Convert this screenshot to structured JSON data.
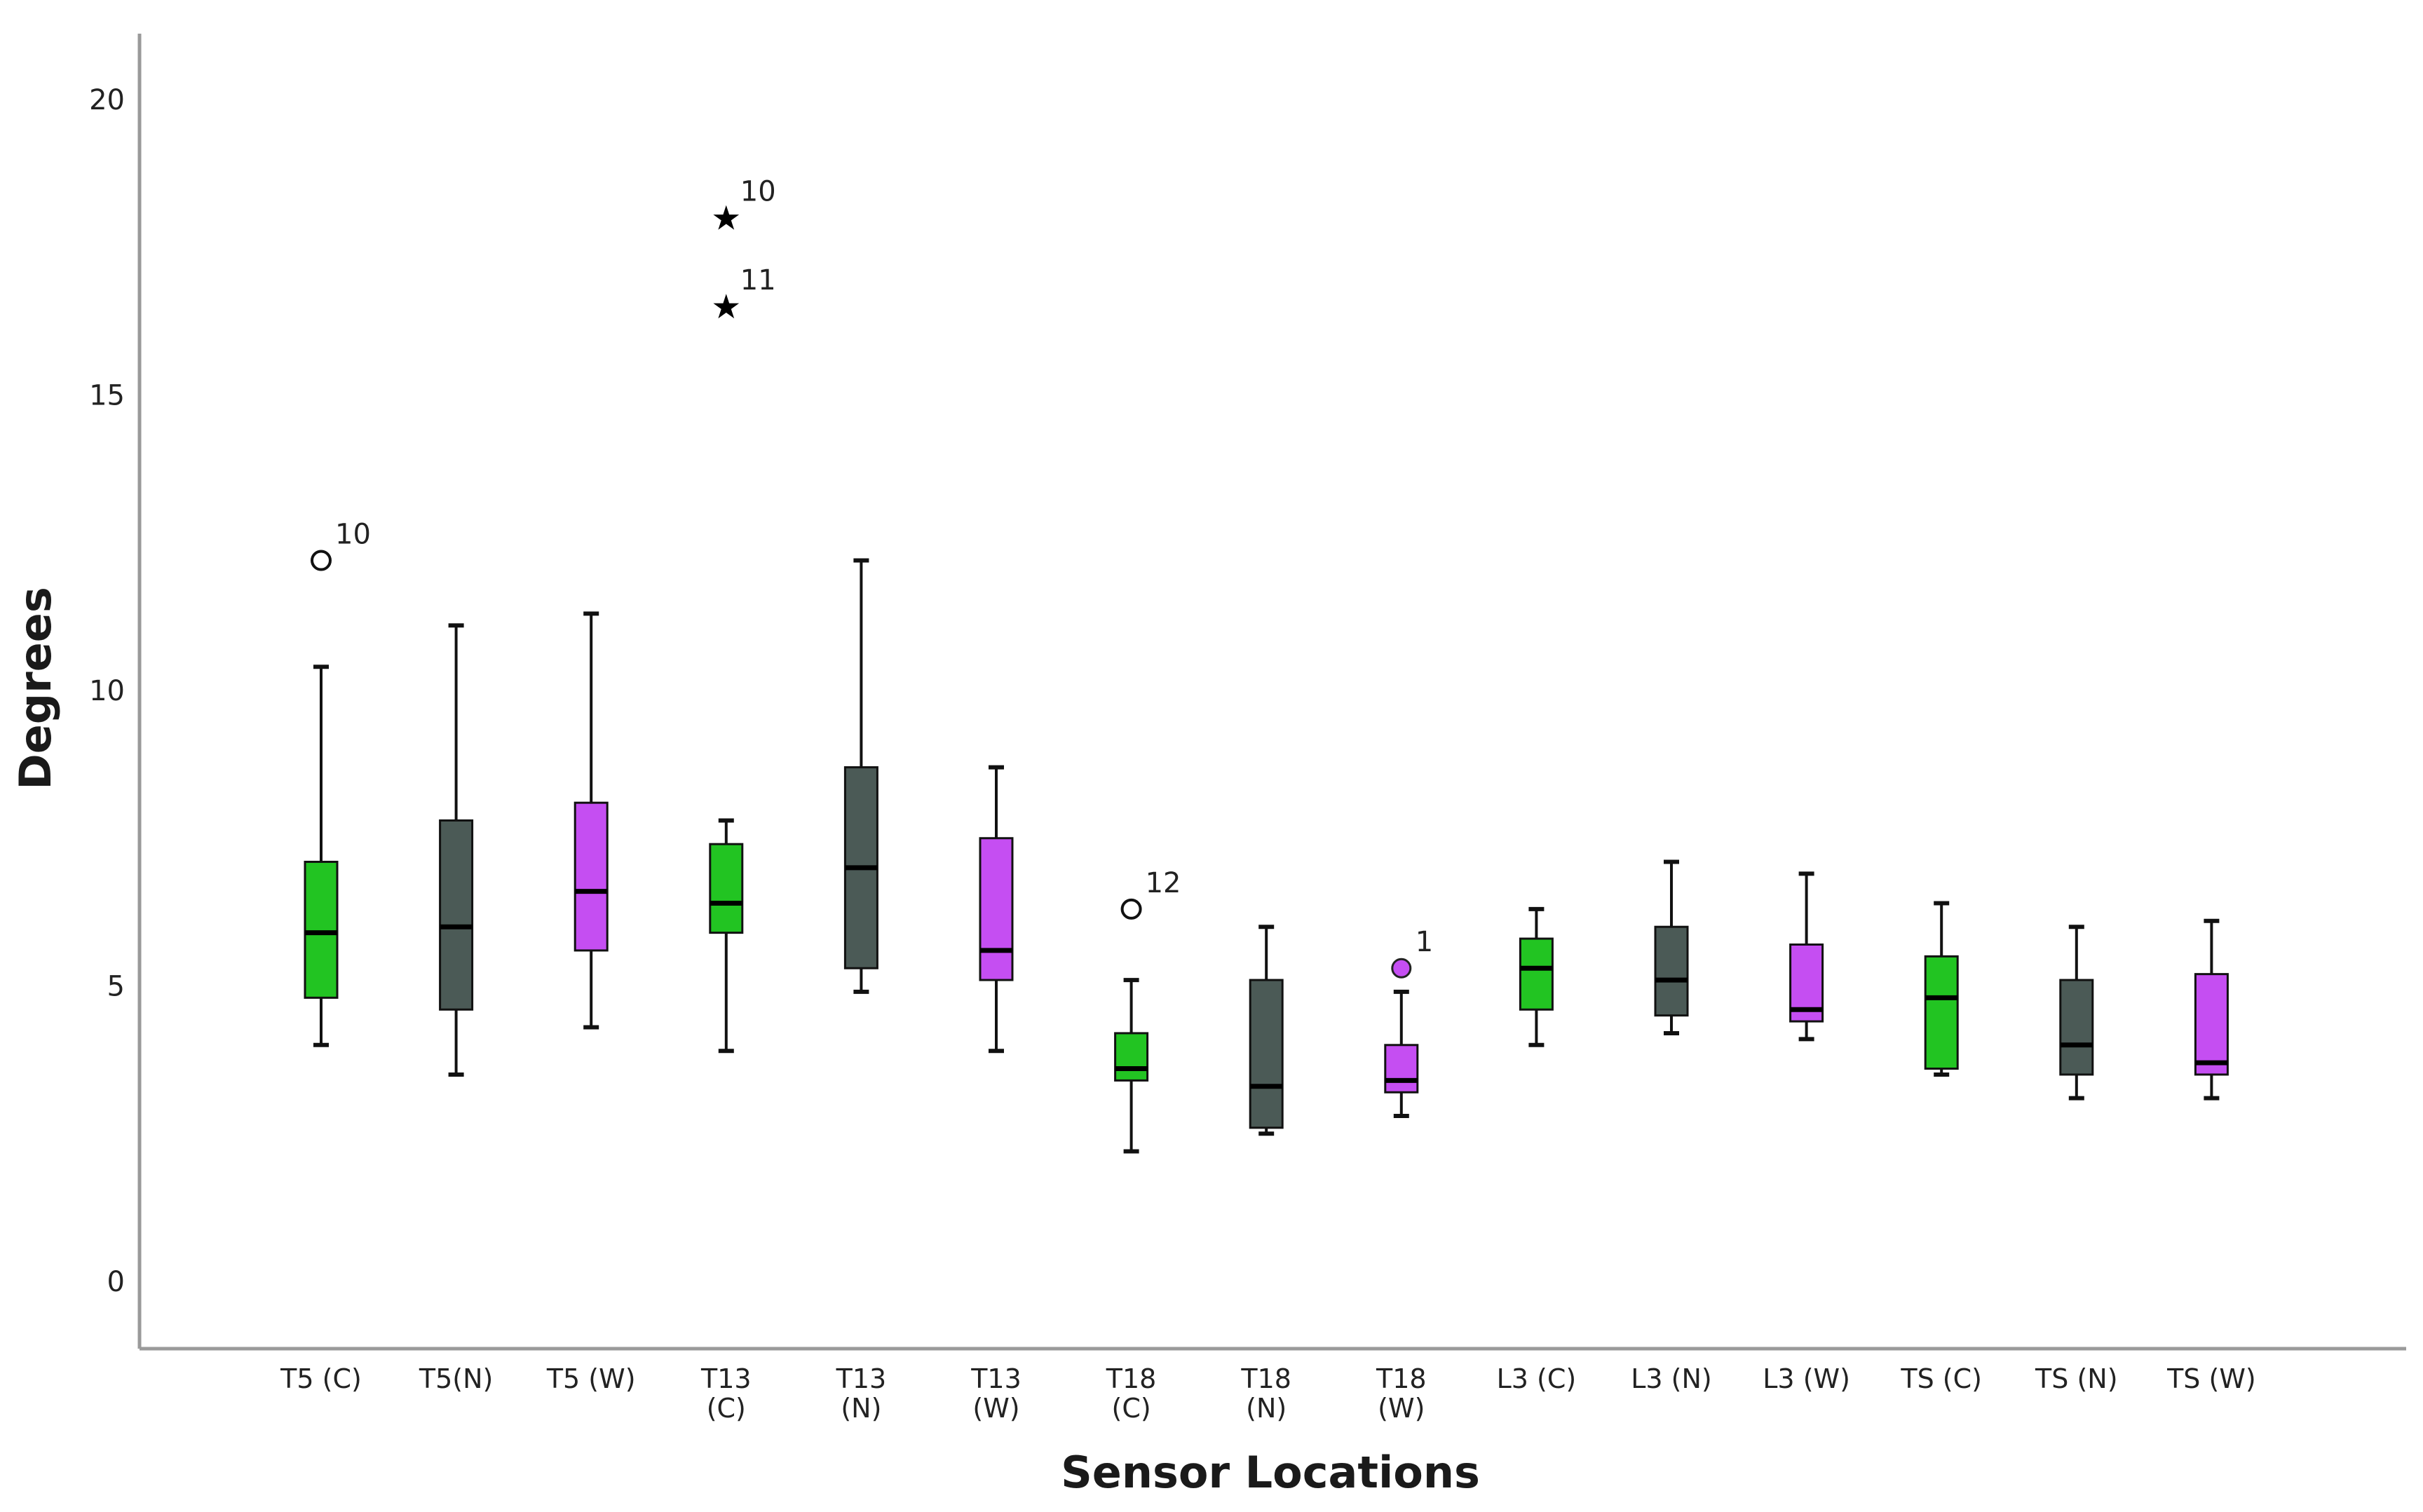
{
  "chart_data": {
    "type": "boxplot",
    "xlabel": "Sensor Locations",
    "ylabel": "Degrees",
    "ylim": [
      0,
      21
    ],
    "yticks": [
      0,
      5,
      10,
      15,
      20
    ],
    "grid": false,
    "colors": {
      "C": "#22c422",
      "N": "#4b5a56",
      "W": "#c54ef2"
    },
    "boxes": [
      {
        "label": [
          "T5 (C)"
        ],
        "group": "C",
        "whisker_low": 4.0,
        "q1": 4.8,
        "median": 5.9,
        "q3": 7.1,
        "whisker_high": 10.4,
        "outliers": [
          {
            "value": 12.2,
            "marker": "circle",
            "label": "10"
          }
        ]
      },
      {
        "label": [
          "T5(N)"
        ],
        "group": "N",
        "whisker_low": 3.5,
        "q1": 4.6,
        "median": 6.0,
        "q3": 7.8,
        "whisker_high": 11.1,
        "outliers": []
      },
      {
        "label": [
          "T5 (W)"
        ],
        "group": "W",
        "whisker_low": 4.3,
        "q1": 5.6,
        "median": 6.6,
        "q3": 8.1,
        "whisker_high": 11.3,
        "outliers": []
      },
      {
        "label": [
          "T13",
          "(C)"
        ],
        "group": "C",
        "whisker_low": 3.9,
        "q1": 5.9,
        "median": 6.4,
        "q3": 7.4,
        "whisker_high": 7.8,
        "outliers": [
          {
            "value": 18.0,
            "marker": "star",
            "label": "10"
          },
          {
            "value": 16.5,
            "marker": "star",
            "label": "11"
          }
        ]
      },
      {
        "label": [
          "T13",
          "(N)"
        ],
        "group": "N",
        "whisker_low": 4.9,
        "q1": 5.3,
        "median": 7.0,
        "q3": 8.7,
        "whisker_high": 12.2,
        "outliers": []
      },
      {
        "label": [
          "T13",
          "(W)"
        ],
        "group": "W",
        "whisker_low": 3.9,
        "q1": 5.1,
        "median": 5.6,
        "q3": 7.5,
        "whisker_high": 8.7,
        "outliers": []
      },
      {
        "label": [
          "T18",
          "(C)"
        ],
        "group": "C",
        "whisker_low": 2.2,
        "q1": 3.4,
        "median": 3.6,
        "q3": 4.2,
        "whisker_high": 5.1,
        "outliers": [
          {
            "value": 6.3,
            "marker": "circle",
            "label": "12"
          }
        ]
      },
      {
        "label": [
          "T18",
          "(N)"
        ],
        "group": "N",
        "whisker_low": 2.5,
        "q1": 2.6,
        "median": 3.3,
        "q3": 5.1,
        "whisker_high": 6.0,
        "outliers": []
      },
      {
        "label": [
          "T18",
          "(W)"
        ],
        "group": "W",
        "whisker_low": 2.8,
        "q1": 3.2,
        "median": 3.4,
        "q3": 4.0,
        "whisker_high": 4.9,
        "outliers": [
          {
            "value": 5.3,
            "marker": "filled-circle",
            "label": "1"
          }
        ]
      },
      {
        "label": [
          "L3 (C)"
        ],
        "group": "C",
        "whisker_low": 4.0,
        "q1": 4.6,
        "median": 5.3,
        "q3": 5.8,
        "whisker_high": 6.3,
        "outliers": []
      },
      {
        "label": [
          "L3 (N)"
        ],
        "group": "N",
        "whisker_low": 4.2,
        "q1": 4.5,
        "median": 5.1,
        "q3": 6.0,
        "whisker_high": 7.1,
        "outliers": []
      },
      {
        "label": [
          "L3 (W)"
        ],
        "group": "W",
        "whisker_low": 4.1,
        "q1": 4.4,
        "median": 4.6,
        "q3": 5.7,
        "whisker_high": 6.9,
        "outliers": []
      },
      {
        "label": [
          "TS (C)"
        ],
        "group": "C",
        "whisker_low": 3.5,
        "q1": 3.6,
        "median": 4.8,
        "q3": 5.5,
        "whisker_high": 6.4,
        "outliers": []
      },
      {
        "label": [
          "TS (N)"
        ],
        "group": "N",
        "whisker_low": 3.1,
        "q1": 3.5,
        "median": 4.0,
        "q3": 5.1,
        "whisker_high": 6.0,
        "outliers": []
      },
      {
        "label": [
          "TS (W)"
        ],
        "group": "W",
        "whisker_low": 3.1,
        "q1": 3.5,
        "median": 3.7,
        "q3": 5.2,
        "whisker_high": 6.1,
        "outliers": []
      }
    ]
  }
}
